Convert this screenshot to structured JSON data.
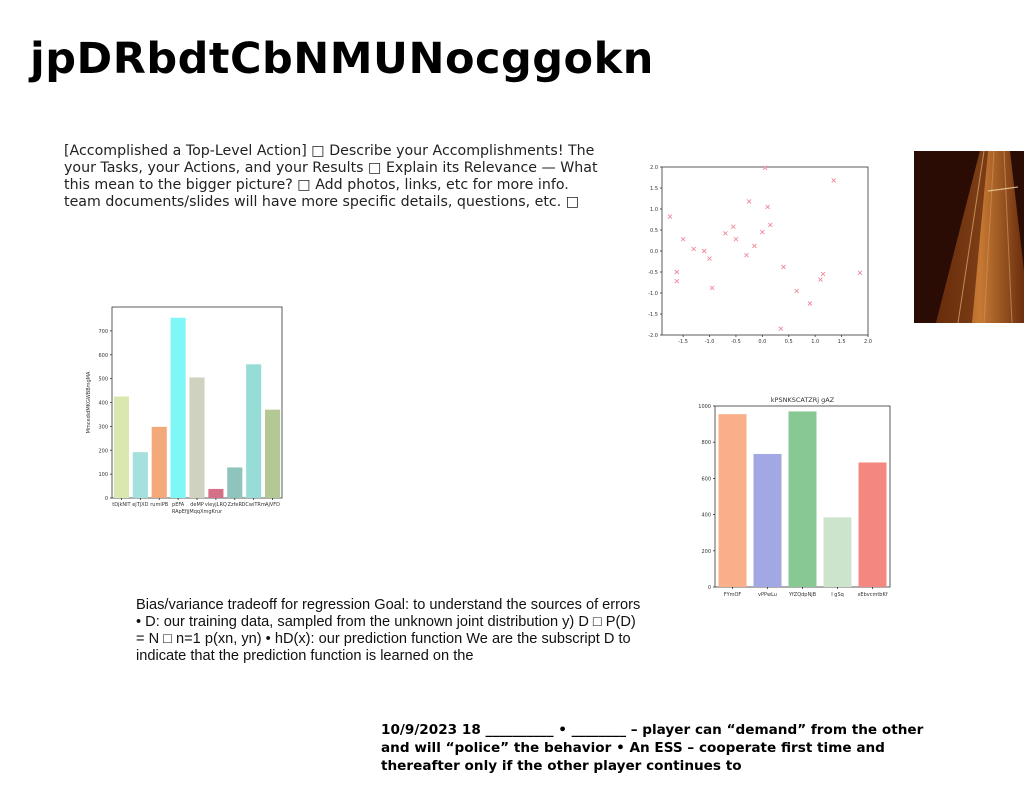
{
  "title": "jpDRbdtCbNMUNocggokn",
  "paragraph1": "[Accomplished a Top-Level Action] □ Describe your Accomplishments! The your Tasks, your Actions, and your Results □ Explain its Relevance — What this mean to the bigger picture? □ Add photos, links, etc for more info. team documents/slides will have more specific details, questions, etc. □",
  "paragraph2": "Bias/variance tradeoff for regression Goal: to understand the sources of errors • D: our training data, sampled from the unknown joint distribution y) D □ P(D) = N □ n=1 p(xn, yn) • hD(x): our prediction function We are the subscript D to indicate that the prediction function is learned on the",
  "paragraph3": "10/9/2023 18 __________ • ________ – player can “demand” from the other  and will “police” the behavior • An ESS – cooperate first time and thereafter only if the other player continues to",
  "chart_data": [
    {
      "type": "bar",
      "title": "",
      "xlabel": "RApEfjjMqqXmgKrur",
      "ylabel": "MmcedidMKGWBBmgMA",
      "ylim": [
        0,
        800
      ],
      "yticks": [
        "0",
        "100",
        "200",
        "300",
        "400",
        "500",
        "600",
        "700"
      ],
      "categories": [
        "tDjkNIT",
        "ejTjXD",
        "rumiPB",
        "pEFA",
        "deMP",
        "vleyjLRQ",
        "ZzfeR",
        "DCwiTRm",
        "AjVFD"
      ],
      "values": [
        425,
        192,
        298,
        755,
        505,
        38,
        128,
        560,
        370
      ],
      "colors": [
        "#d8e8b0",
        "#a4e0dc",
        "#f4a97a",
        "#7ff7f7",
        "#d0d2c0",
        "#d47088",
        "#8fc4bc",
        "#98dcd8",
        "#b4c894"
      ]
    },
    {
      "type": "scatter",
      "title": "",
      "xlabel": "",
      "ylabel": "",
      "xlim": [
        -1.9,
        2.0
      ],
      "ylim": [
        -2.0,
        2.0
      ],
      "xticks": [
        "-1.5",
        "-1.0",
        "-0.5",
        "0.0",
        "0.5",
        "1.0",
        "1.5",
        "2.0"
      ],
      "yticks": [
        "-2.0",
        "-1.5",
        "-1.0",
        "-0.5",
        "0.0",
        "0.5",
        "1.0",
        "1.5",
        "2.0"
      ],
      "marker_color": "#f08a9a",
      "points": [
        [
          -1.75,
          0.82
        ],
        [
          -1.5,
          0.28
        ],
        [
          -1.3,
          0.05
        ],
        [
          -1.1,
          0.0
        ],
        [
          -1.0,
          -0.18
        ],
        [
          -0.95,
          -0.88
        ],
        [
          -1.62,
          -0.5
        ],
        [
          -1.62,
          -0.72
        ],
        [
          -0.7,
          0.42
        ],
        [
          -0.55,
          0.58
        ],
        [
          -0.5,
          0.28
        ],
        [
          -0.3,
          -0.1
        ],
        [
          -0.25,
          1.18
        ],
        [
          -0.15,
          0.12
        ],
        [
          0.0,
          0.45
        ],
        [
          0.05,
          1.98
        ],
        [
          0.1,
          1.05
        ],
        [
          0.15,
          0.62
        ],
        [
          0.4,
          -0.38
        ],
        [
          0.35,
          -1.85
        ],
        [
          0.65,
          -0.95
        ],
        [
          0.9,
          -1.25
        ],
        [
          1.1,
          -0.68
        ],
        [
          1.15,
          -0.55
        ],
        [
          1.35,
          1.68
        ],
        [
          1.85,
          -0.52
        ]
      ]
    },
    {
      "type": "bar",
      "title": "kPSNKSCATZRj gAZ",
      "xlabel": "",
      "ylabel": "",
      "ylim": [
        0,
        1000
      ],
      "yticks": [
        "0",
        "200",
        "400",
        "600",
        "800",
        "1000"
      ],
      "categories": [
        "FYmOF",
        "vPPwLu",
        "YfZQdpNjB",
        "I gSq",
        "xEbvcmtbKf"
      ],
      "values": [
        955,
        735,
        970,
        385,
        688
      ],
      "colors": [
        "#f9b08a",
        "#a2a8e4",
        "#88c894",
        "#cce4cc",
        "#f48880"
      ]
    }
  ]
}
